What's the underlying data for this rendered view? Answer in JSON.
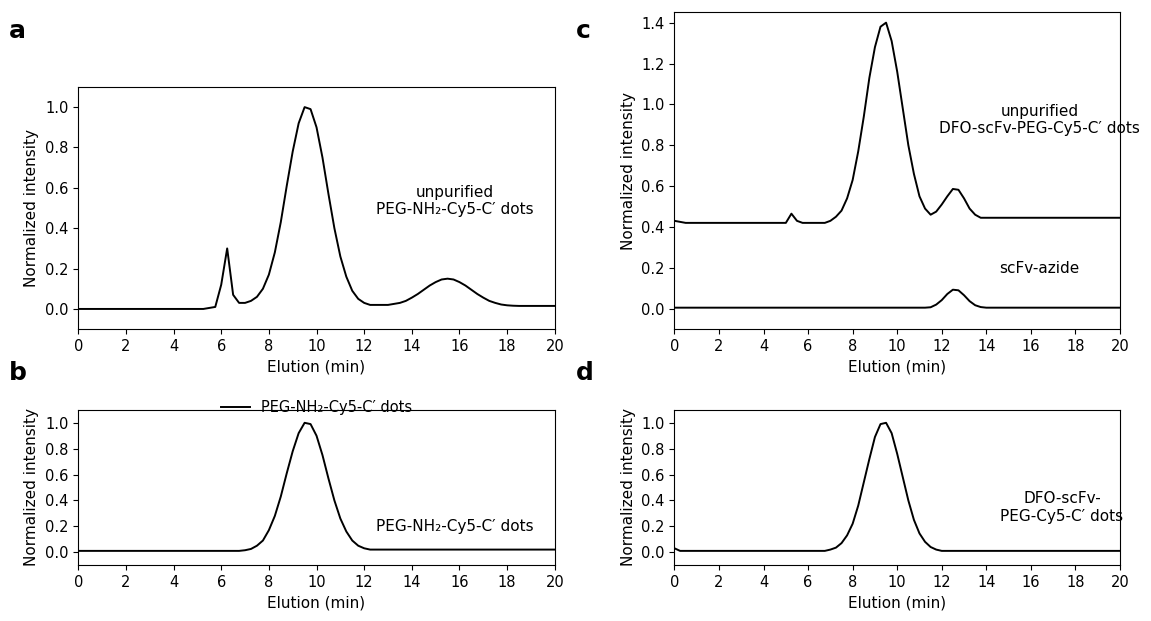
{
  "chart_data": [
    {
      "type": "line",
      "title": "a",
      "xlabel": "Elution (min)",
      "ylabel": "Normalized intensity",
      "x": [
        0,
        0.25,
        0.5,
        0.75,
        1,
        1.25,
        1.5,
        1.75,
        2,
        2.25,
        2.5,
        2.75,
        3,
        3.25,
        3.5,
        3.75,
        4,
        4.25,
        4.5,
        4.75,
        5,
        5.25,
        5.5,
        5.75,
        6,
        6.25,
        6.5,
        6.75,
        7,
        7.25,
        7.5,
        7.75,
        8,
        8.25,
        8.5,
        8.75,
        9,
        9.25,
        9.5,
        9.75,
        10,
        10.25,
        10.5,
        10.75,
        11,
        11.25,
        11.5,
        11.75,
        12,
        12.25,
        12.5,
        12.75,
        13,
        13.25,
        13.5,
        13.75,
        14,
        14.25,
        14.5,
        14.75,
        15,
        15.25,
        15.5,
        15.75,
        16,
        16.25,
        16.5,
        16.75,
        17,
        17.25,
        17.5,
        17.75,
        18,
        18.25,
        18.5,
        18.75,
        19,
        19.25,
        19.5,
        19.75,
        20
      ],
      "series": [
        {
          "color": "#000000",
          "values": [
            0,
            0,
            0,
            0,
            0,
            0,
            0,
            0,
            0,
            0,
            0,
            0,
            0,
            0,
            0,
            0,
            0,
            0,
            0,
            0,
            0,
            0,
            0.005,
            0.01,
            0.12,
            0.3,
            0.07,
            0.03,
            0.03,
            0.04,
            0.06,
            0.1,
            0.17,
            0.28,
            0.43,
            0.61,
            0.78,
            0.92,
            1.0,
            0.99,
            0.9,
            0.75,
            0.57,
            0.4,
            0.26,
            0.16,
            0.09,
            0.05,
            0.03,
            0.02,
            0.02,
            0.02,
            0.02,
            0.025,
            0.03,
            0.04,
            0.056,
            0.074,
            0.095,
            0.116,
            0.133,
            0.146,
            0.15,
            0.146,
            0.133,
            0.116,
            0.095,
            0.074,
            0.056,
            0.04,
            0.03,
            0.022,
            0.018,
            0.016,
            0.015,
            0.015,
            0.015,
            0.015,
            0.015,
            0.015,
            0.015
          ]
        }
      ],
      "xlim": [
        0,
        20
      ],
      "xticks": [
        0,
        2,
        4,
        6,
        8,
        10,
        12,
        14,
        16,
        18,
        20
      ],
      "ylim": [
        -0.1,
        1.1
      ],
      "yticks": [
        {
          "value": 0,
          "label": "0.0"
        },
        {
          "value": 0.2,
          "label": "0.2"
        },
        {
          "value": 0.4,
          "label": "0.4"
        },
        {
          "value": 0.6,
          "label": "0.6"
        },
        {
          "value": 0.8,
          "label": "0.8"
        },
        {
          "value": 1.0,
          "label": "1.0"
        }
      ],
      "annotations": [
        "unpurified\nPEG-NH₂-Cy5-C′ dots"
      ]
    },
    {
      "type": "line",
      "title": "b",
      "xlabel": "Elution (min)",
      "ylabel": "Normalized intensity",
      "x": [
        0,
        0.25,
        0.5,
        0.75,
        1,
        1.25,
        1.5,
        1.75,
        2,
        2.25,
        2.5,
        2.75,
        3,
        3.25,
        3.5,
        3.75,
        4,
        4.25,
        4.5,
        4.75,
        5,
        5.25,
        5.5,
        5.75,
        6,
        6.25,
        6.5,
        6.75,
        7,
        7.25,
        7.5,
        7.75,
        8,
        8.25,
        8.5,
        8.75,
        9,
        9.25,
        9.5,
        9.75,
        10,
        10.25,
        10.5,
        10.75,
        11,
        11.25,
        11.5,
        11.75,
        12,
        12.25,
        12.5,
        12.75,
        13,
        13.25,
        13.5,
        13.75,
        14,
        14.25,
        14.5,
        14.75,
        15,
        15.25,
        15.5,
        15.75,
        16,
        16.25,
        16.5,
        16.75,
        17,
        17.25,
        17.5,
        17.75,
        18,
        18.25,
        18.5,
        18.75,
        19,
        19.25,
        19.5,
        19.75,
        20
      ],
      "series": [
        {
          "name": "PEG-NH₂-Cy5-C′ dots",
          "color": "#000000",
          "values": [
            0.01,
            0.01,
            0.01,
            0.01,
            0.01,
            0.01,
            0.01,
            0.01,
            0.01,
            0.01,
            0.01,
            0.01,
            0.01,
            0.01,
            0.01,
            0.01,
            0.01,
            0.01,
            0.01,
            0.01,
            0.01,
            0.01,
            0.01,
            0.01,
            0.01,
            0.01,
            0.01,
            0.01,
            0.015,
            0.025,
            0.05,
            0.09,
            0.17,
            0.28,
            0.43,
            0.61,
            0.78,
            0.92,
            1.0,
            0.99,
            0.9,
            0.75,
            0.57,
            0.4,
            0.26,
            0.16,
            0.09,
            0.05,
            0.03,
            0.02,
            0.02,
            0.02,
            0.02,
            0.02,
            0.02,
            0.02,
            0.02,
            0.02,
            0.02,
            0.02,
            0.02,
            0.02,
            0.02,
            0.02,
            0.02,
            0.02,
            0.02,
            0.02,
            0.02,
            0.02,
            0.02,
            0.02,
            0.02,
            0.02,
            0.02,
            0.02,
            0.02,
            0.02,
            0.02,
            0.02,
            0.02
          ]
        }
      ],
      "xlim": [
        0,
        20
      ],
      "xticks": [
        0,
        2,
        4,
        6,
        8,
        10,
        12,
        14,
        16,
        18,
        20
      ],
      "ylim": [
        -0.1,
        1.1
      ],
      "yticks": [
        {
          "value": 0,
          "label": "0.0"
        },
        {
          "value": 0.2,
          "label": "0.2"
        },
        {
          "value": 0.4,
          "label": "0.4"
        },
        {
          "value": 0.6,
          "label": "0.6"
        },
        {
          "value": 0.8,
          "label": "0.8"
        },
        {
          "value": 1.0,
          "label": "1.0"
        }
      ],
      "legend": "upper center",
      "annotations": [
        "PEG-NH₂-Cy5-C′ dots"
      ]
    },
    {
      "type": "line",
      "title": "c",
      "xlabel": "Elution (min)",
      "ylabel": "Normalized intensity",
      "x": [
        0,
        0.25,
        0.5,
        0.75,
        1,
        1.25,
        1.5,
        1.75,
        2,
        2.25,
        2.5,
        2.75,
        3,
        3.25,
        3.5,
        3.75,
        4,
        4.25,
        4.5,
        4.75,
        5,
        5.25,
        5.5,
        5.75,
        6,
        6.25,
        6.5,
        6.75,
        7,
        7.25,
        7.5,
        7.75,
        8,
        8.25,
        8.5,
        8.75,
        9,
        9.25,
        9.5,
        9.75,
        10,
        10.25,
        10.5,
        10.75,
        11,
        11.25,
        11.5,
        11.75,
        12,
        12.25,
        12.5,
        12.75,
        13,
        13.25,
        13.5,
        13.75,
        14,
        14.25,
        14.5,
        14.75,
        15,
        15.25,
        15.5,
        15.75,
        16,
        16.25,
        16.5,
        16.75,
        17,
        17.25,
        17.5,
        17.75,
        18,
        18.25,
        18.5,
        18.75,
        19,
        19.25,
        19.5,
        19.75,
        20
      ],
      "series": [
        {
          "color": "#000000",
          "values": [
            0.43,
            0.425,
            0.42,
            0.42,
            0.42,
            0.42,
            0.42,
            0.42,
            0.42,
            0.42,
            0.42,
            0.42,
            0.42,
            0.42,
            0.42,
            0.42,
            0.42,
            0.42,
            0.42,
            0.42,
            0.42,
            0.465,
            0.43,
            0.42,
            0.42,
            0.42,
            0.42,
            0.42,
            0.43,
            0.45,
            0.48,
            0.54,
            0.63,
            0.77,
            0.94,
            1.13,
            1.28,
            1.38,
            1.4,
            1.31,
            1.16,
            0.98,
            0.8,
            0.66,
            0.55,
            0.49,
            0.46,
            0.475,
            0.51,
            0.55,
            0.586,
            0.582,
            0.54,
            0.49,
            0.46,
            0.445,
            0.445,
            0.445,
            0.445,
            0.445,
            0.445,
            0.445,
            0.445,
            0.445,
            0.445,
            0.445,
            0.445,
            0.445,
            0.445,
            0.445,
            0.445,
            0.445,
            0.445,
            0.445,
            0.445,
            0.445,
            0.445,
            0.445,
            0.445,
            0.445,
            0.445
          ]
        },
        {
          "color": "#000000",
          "values": [
            0.005,
            0.005,
            0.005,
            0.005,
            0.005,
            0.005,
            0.005,
            0.005,
            0.005,
            0.005,
            0.005,
            0.005,
            0.005,
            0.005,
            0.005,
            0.005,
            0.005,
            0.005,
            0.005,
            0.005,
            0.005,
            0.005,
            0.005,
            0.005,
            0.005,
            0.005,
            0.005,
            0.005,
            0.005,
            0.005,
            0.005,
            0.005,
            0.005,
            0.005,
            0.005,
            0.005,
            0.005,
            0.005,
            0.005,
            0.005,
            0.005,
            0.005,
            0.005,
            0.005,
            0.005,
            0.005,
            0.007,
            0.02,
            0.042,
            0.072,
            0.093,
            0.09,
            0.066,
            0.037,
            0.017,
            0.008,
            0.005,
            0.005,
            0.005,
            0.005,
            0.005,
            0.005,
            0.005,
            0.005,
            0.005,
            0.005,
            0.005,
            0.005,
            0.005,
            0.005,
            0.005,
            0.005,
            0.005,
            0.005,
            0.005,
            0.005,
            0.005,
            0.005,
            0.005,
            0.005,
            0.005
          ]
        }
      ],
      "xlim": [
        0,
        20
      ],
      "xticks": [
        0,
        2,
        4,
        6,
        8,
        10,
        12,
        14,
        16,
        18,
        20
      ],
      "ylim": [
        -0.1,
        1.45
      ],
      "yticks": [
        {
          "value": 0,
          "label": "0.0"
        },
        {
          "value": 0.2,
          "label": "0.2"
        },
        {
          "value": 0.4,
          "label": "0.4"
        },
        {
          "value": 0.6,
          "label": "0.6"
        },
        {
          "value": 0.8,
          "label": "0.8"
        },
        {
          "value": 1.0,
          "label": "1.0"
        },
        {
          "value": 1.2,
          "label": "1.2"
        },
        {
          "value": 1.4,
          "label": "1.4"
        }
      ],
      "annotations": [
        "unpurified\nDFO-scFv-PEG-Cy5-C′ dots",
        "scFv-azide"
      ]
    },
    {
      "type": "line",
      "title": "d",
      "xlabel": "Elution (min)",
      "ylabel": "Normalized intensity",
      "x": [
        0,
        0.25,
        0.5,
        0.75,
        1,
        1.25,
        1.5,
        1.75,
        2,
        2.25,
        2.5,
        2.75,
        3,
        3.25,
        3.5,
        3.75,
        4,
        4.25,
        4.5,
        4.75,
        5,
        5.25,
        5.5,
        5.75,
        6,
        6.25,
        6.5,
        6.75,
        7,
        7.25,
        7.5,
        7.75,
        8,
        8.25,
        8.5,
        8.75,
        9,
        9.25,
        9.5,
        9.75,
        10,
        10.25,
        10.5,
        10.75,
        11,
        11.25,
        11.5,
        11.75,
        12,
        12.25,
        12.5,
        12.75,
        13,
        13.25,
        13.5,
        13.75,
        14,
        14.25,
        14.5,
        14.75,
        15,
        15.25,
        15.5,
        15.75,
        16,
        16.25,
        16.5,
        16.75,
        17,
        17.25,
        17.5,
        17.75,
        18,
        18.25,
        18.5,
        18.75,
        19,
        19.25,
        19.5,
        19.75,
        20
      ],
      "series": [
        {
          "color": "#000000",
          "values": [
            0.03,
            0.01,
            0.01,
            0.01,
            0.01,
            0.01,
            0.01,
            0.01,
            0.01,
            0.01,
            0.01,
            0.01,
            0.01,
            0.01,
            0.01,
            0.01,
            0.01,
            0.01,
            0.01,
            0.01,
            0.01,
            0.01,
            0.01,
            0.01,
            0.01,
            0.01,
            0.01,
            0.01,
            0.02,
            0.035,
            0.07,
            0.13,
            0.22,
            0.36,
            0.54,
            0.72,
            0.89,
            0.99,
            1.0,
            0.92,
            0.76,
            0.58,
            0.4,
            0.25,
            0.145,
            0.08,
            0.04,
            0.02,
            0.01,
            0.01,
            0.01,
            0.01,
            0.01,
            0.01,
            0.01,
            0.01,
            0.01,
            0.01,
            0.01,
            0.01,
            0.01,
            0.01,
            0.01,
            0.01,
            0.01,
            0.01,
            0.01,
            0.01,
            0.01,
            0.01,
            0.01,
            0.01,
            0.01,
            0.01,
            0.01,
            0.01,
            0.01,
            0.01,
            0.01,
            0.01,
            0.01
          ]
        }
      ],
      "xlim": [
        0,
        20
      ],
      "xticks": [
        0,
        2,
        4,
        6,
        8,
        10,
        12,
        14,
        16,
        18,
        20
      ],
      "ylim": [
        -0.1,
        1.1
      ],
      "yticks": [
        {
          "value": 0,
          "label": "0.0"
        },
        {
          "value": 0.2,
          "label": "0.2"
        },
        {
          "value": 0.4,
          "label": "0.4"
        },
        {
          "value": 0.6,
          "label": "0.6"
        },
        {
          "value": 0.8,
          "label": "0.8"
        },
        {
          "value": 1.0,
          "label": "1.0"
        }
      ],
      "annotations": [
        "DFO-scFv-\nPEG-Cy5-C′ dots"
      ]
    }
  ]
}
